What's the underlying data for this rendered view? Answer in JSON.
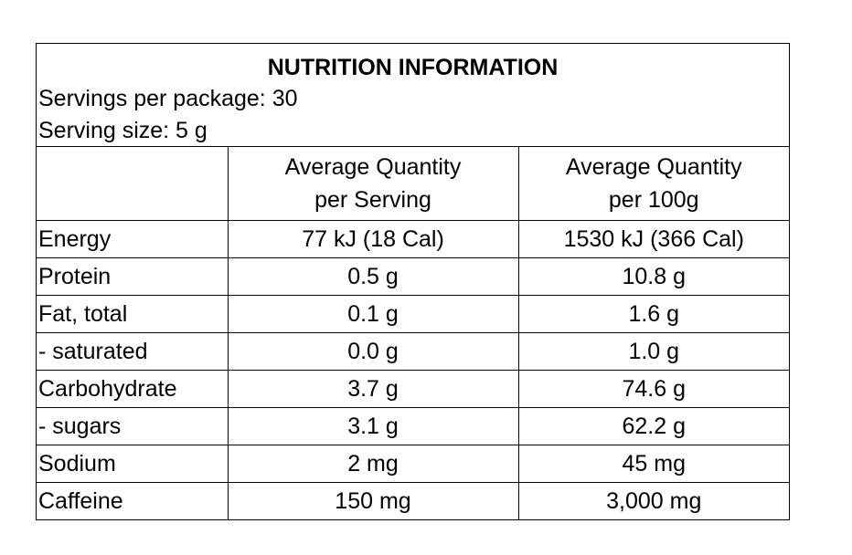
{
  "title": "NUTRITION INFORMATION",
  "servings_per_package": "Servings per package: 30",
  "serving_size": "Serving size: 5 g",
  "columns": {
    "per_serving": [
      "Average Quantity",
      "per Serving"
    ],
    "per_100g": [
      "Average Quantity",
      "per 100g"
    ]
  },
  "rows": [
    {
      "label": "Energy",
      "per_serving": "77 kJ (18 Cal)",
      "per_100g": "1530 kJ (366 Cal)"
    },
    {
      "label": "Protein",
      "per_serving": "0.5 g",
      "per_100g": "10.8 g"
    },
    {
      "label": "Fat, total",
      "per_serving": "0.1 g",
      "per_100g": "1.6 g"
    },
    {
      "label": "- saturated",
      "per_serving": "0.0 g",
      "per_100g": "1.0 g"
    },
    {
      "label": "Carbohydrate",
      "per_serving": "3.7 g",
      "per_100g": "74.6 g"
    },
    {
      "label": "- sugars",
      "per_serving": "3.1 g",
      "per_100g": "62.2 g"
    },
    {
      "label": "Sodium",
      "per_serving": "2 mg",
      "per_100g": "45 mg"
    },
    {
      "label": "Caffeine",
      "per_serving": "150 mg",
      "per_100g": "3,000 mg"
    }
  ]
}
